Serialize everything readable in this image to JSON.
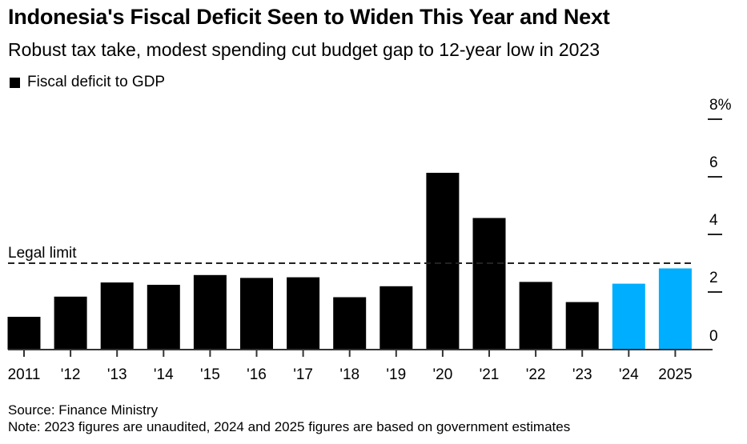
{
  "header": {
    "title": "Indonesia's Fiscal Deficit Seen to Widen This Year and Next",
    "subtitle": "Robust tax take, modest spending cut budget gap to 12-year low in 2023"
  },
  "legend": {
    "label": "Fiscal deficit to GDP",
    "color": "#000000"
  },
  "footer": {
    "source": "Source: Finance Ministry",
    "note": "Note: 2023 figures are unaudited, 2024 and 2025 figures are based on government estimates"
  },
  "chart_data": {
    "type": "bar",
    "title": "Indonesia's Fiscal Deficit Seen to Widen This Year and Next",
    "subtitle": "Robust tax take, modest spending cut budget gap to 12-year low in 2023",
    "xlabel": "",
    "ylabel": "",
    "categories": [
      "2011",
      "'12",
      "'13",
      "'14",
      "'15",
      "'16",
      "'17",
      "'18",
      "'19",
      "'20",
      "'21",
      "'22",
      "'23",
      "'24",
      "2025"
    ],
    "series": [
      {
        "name": "Fiscal deficit to GDP",
        "values": [
          1.14,
          1.84,
          2.33,
          2.25,
          2.59,
          2.49,
          2.51,
          1.82,
          2.2,
          6.14,
          4.57,
          2.35,
          1.65,
          2.29,
          2.82
        ],
        "colors": [
          "#000000",
          "#000000",
          "#000000",
          "#000000",
          "#000000",
          "#000000",
          "#000000",
          "#000000",
          "#000000",
          "#000000",
          "#000000",
          "#000000",
          "#000000",
          "#00aeff",
          "#00aeff"
        ]
      }
    ],
    "estimate_color": "#00aeff",
    "actual_color": "#000000",
    "ylim": [
      0,
      8
    ],
    "yticks": [
      0,
      2,
      4,
      6,
      8
    ],
    "ytick_labels": [
      "0",
      "2",
      "4",
      "6",
      "8%"
    ],
    "yaxis_side": "right",
    "grid": false,
    "legend_position": "top-left",
    "annotations": [
      {
        "type": "hline",
        "label": "Legal limit",
        "value": 3,
        "style": "dashed"
      }
    ]
  }
}
